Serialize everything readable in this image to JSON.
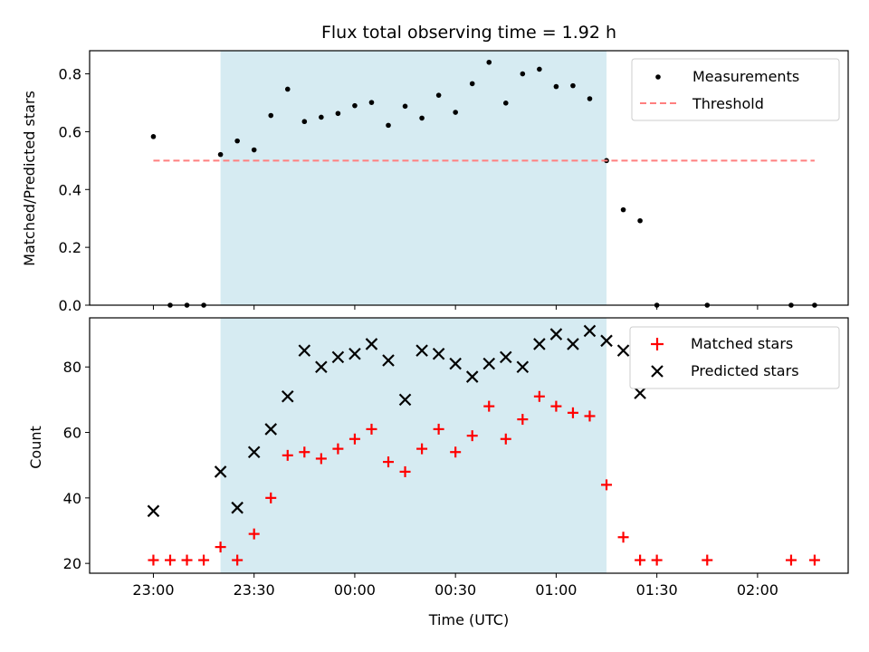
{
  "chart_data": [
    {
      "type": "scatter",
      "title": "Flux total observing time = 1.92 h",
      "ylabel": "Matched/Predicted stars",
      "xlabel": "",
      "xlim_minutes": [
        -19,
        207
      ],
      "ylim": [
        0,
        0.88
      ],
      "yticks": [
        0.0,
        0.2,
        0.4,
        0.6,
        0.8
      ],
      "ytick_labels": [
        "0.0",
        "0.2",
        "0.4",
        "0.6",
        "0.8"
      ],
      "grid": false,
      "legend_position": "top-right",
      "shaded_span": {
        "start": "23:20",
        "end": "01:15",
        "color": "#add8e6"
      },
      "series": [
        {
          "name": "Measurements",
          "marker": "dot",
          "color": "#000000",
          "x": [
            "23:00",
            "23:05",
            "23:10",
            "23:15",
            "23:20",
            "23:25",
            "23:30",
            "23:35",
            "23:40",
            "23:45",
            "23:50",
            "23:55",
            "00:00",
            "00:05",
            "00:10",
            "00:15",
            "00:20",
            "00:25",
            "00:30",
            "00:35",
            "00:40",
            "00:45",
            "00:50",
            "00:55",
            "01:00",
            "01:05",
            "01:10",
            "01:15",
            "01:20",
            "01:25",
            "01:30",
            "01:45",
            "02:10",
            "02:17"
          ],
          "y": [
            0.583,
            0,
            0,
            0,
            0.521,
            0.568,
            0.537,
            0.656,
            0.747,
            0.635,
            0.65,
            0.663,
            0.69,
            0.701,
            0.622,
            0.688,
            0.647,
            0.726,
            0.667,
            0.766,
            0.84,
            0.699,
            0.8,
            0.816,
            0.756,
            0.759,
            0.714,
            0.5,
            0.33,
            0.292,
            0,
            0,
            0,
            0
          ]
        },
        {
          "name": "Threshold",
          "marker": "dashed-line",
          "color": "#ff7f7f",
          "x": [
            "23:00",
            "02:17"
          ],
          "y": [
            0.5,
            0.5
          ]
        }
      ]
    },
    {
      "type": "scatter",
      "title": "",
      "ylabel": "Count",
      "xlabel": "Time (UTC)",
      "xlim_minutes": [
        -19,
        207
      ],
      "ylim": [
        17,
        95
      ],
      "yticks": [
        20,
        40,
        60,
        80
      ],
      "ytick_labels": [
        "20",
        "40",
        "60",
        "80"
      ],
      "xticks": [
        "23:00",
        "23:30",
        "00:00",
        "00:30",
        "01:00",
        "01:30",
        "02:00"
      ],
      "grid": false,
      "legend_position": "top-right",
      "shaded_span": {
        "start": "23:20",
        "end": "01:15",
        "color": "#add8e6"
      },
      "series": [
        {
          "name": "Matched stars",
          "marker": "plus",
          "color": "#ff0000",
          "x": [
            "23:00",
            "23:05",
            "23:10",
            "23:15",
            "23:20",
            "23:25",
            "23:30",
            "23:35",
            "23:40",
            "23:45",
            "23:50",
            "23:55",
            "00:00",
            "00:05",
            "00:10",
            "00:15",
            "00:20",
            "00:25",
            "00:30",
            "00:35",
            "00:40",
            "00:45",
            "00:50",
            "00:55",
            "01:00",
            "01:05",
            "01:10",
            "01:15",
            "01:20",
            "01:25",
            "01:30",
            "01:45",
            "02:10",
            "02:17"
          ],
          "y": [
            21,
            21,
            21,
            21,
            25,
            21,
            29,
            40,
            53,
            54,
            52,
            55,
            58,
            61,
            51,
            48,
            55,
            61,
            54,
            59,
            68,
            58,
            64,
            71,
            68,
            66,
            65,
            44,
            28,
            21,
            21,
            21,
            21,
            21
          ]
        },
        {
          "name": "Predicted stars",
          "marker": "x",
          "color": "#000000",
          "x": [
            "23:00",
            "23:20",
            "23:25",
            "23:30",
            "23:35",
            "23:40",
            "23:45",
            "23:50",
            "23:55",
            "00:00",
            "00:05",
            "00:10",
            "00:15",
            "00:20",
            "00:25",
            "00:30",
            "00:35",
            "00:40",
            "00:45",
            "00:50",
            "00:55",
            "01:00",
            "01:05",
            "01:10",
            "01:15",
            "01:20",
            "01:25"
          ],
          "y": [
            36,
            48,
            37,
            54,
            61,
            71,
            85,
            80,
            83,
            84,
            87,
            82,
            70,
            85,
            84,
            81,
            77,
            81,
            83,
            80,
            87,
            90,
            87,
            91,
            88,
            85,
            72
          ]
        }
      ]
    }
  ]
}
